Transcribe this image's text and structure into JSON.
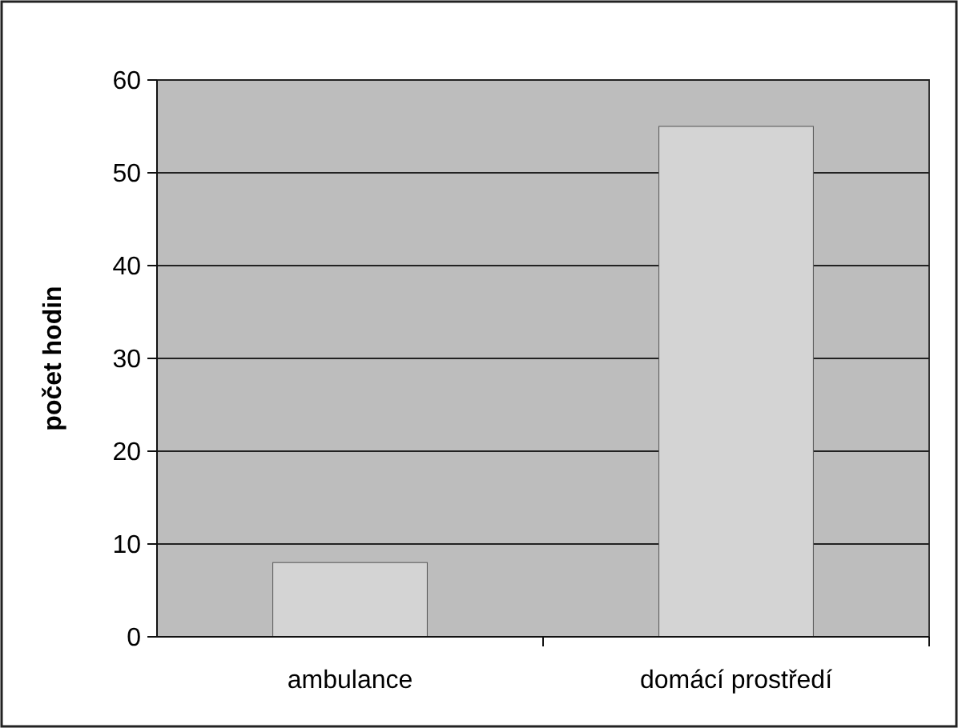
{
  "chart_data": {
    "type": "bar",
    "ylabel": "počet hodin",
    "categories": [
      "ambulance",
      "domácí prostředí"
    ],
    "values": [
      8,
      55
    ],
    "color": "#d4d4d4",
    "ylim": [
      0,
      60
    ],
    "yticks": [
      0,
      10,
      20,
      30,
      40,
      50,
      60
    ],
    "grid": "y"
  }
}
